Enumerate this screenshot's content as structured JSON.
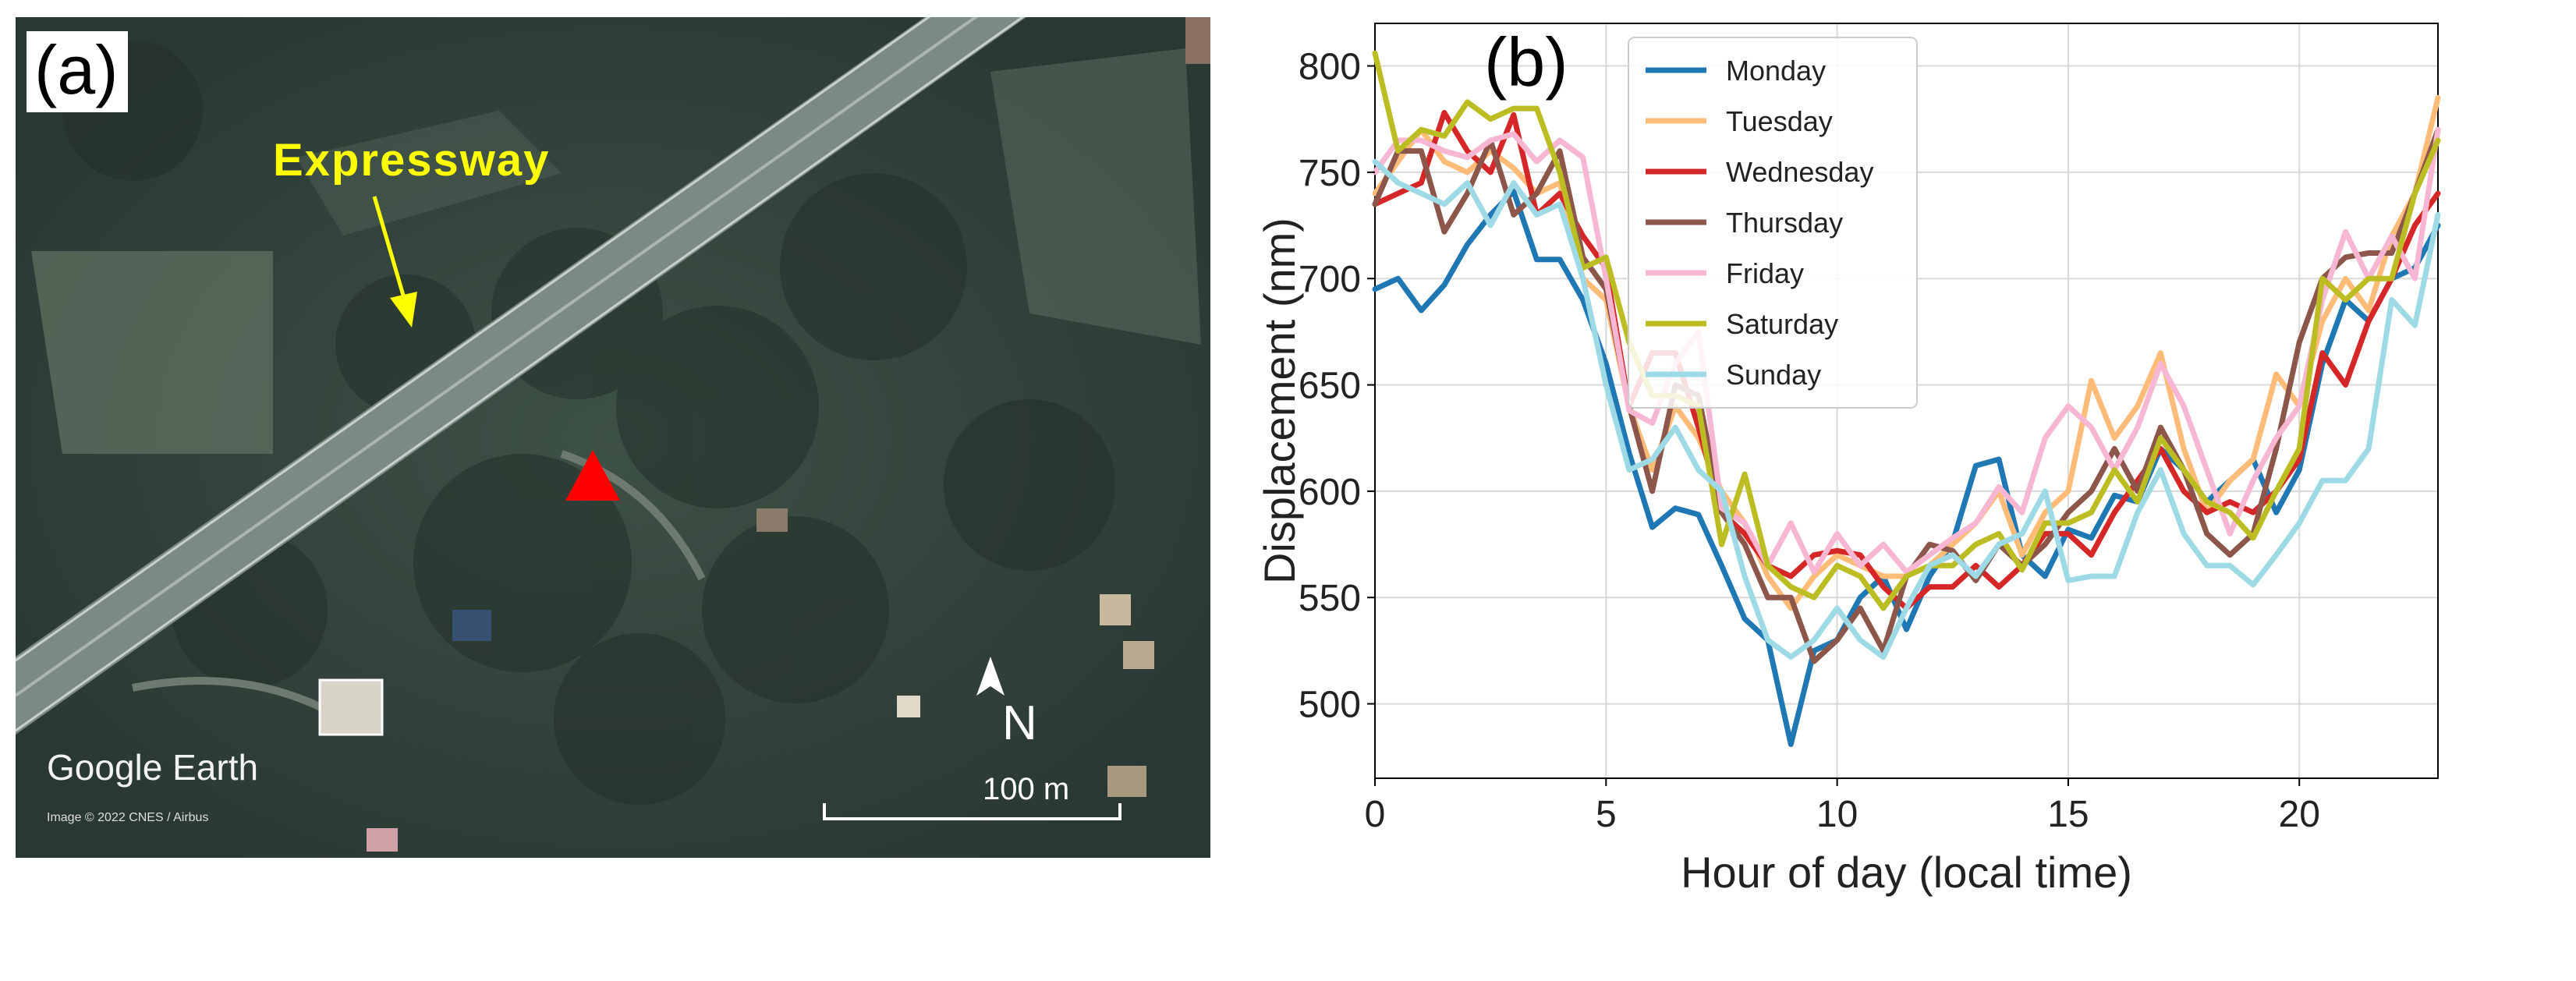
{
  "panel_a": {
    "panel_label": "(a)",
    "expressway_label": "Expressway",
    "north_label": "N",
    "scale_label": "100 m",
    "brand": "Google Earth",
    "imagery_credit": "Image © 2022 CNES / Airbus",
    "colors": {
      "annotation": "#ffff00",
      "station_marker": "#ff0000",
      "scale_bar": "#ffffff"
    }
  },
  "chart_data": {
    "type": "line",
    "panel_label": "(b)",
    "xlabel": "Hour of day (local time)",
    "ylabel": "Displacement (nm)",
    "xlim": [
      0,
      23
    ],
    "ylim": [
      465,
      820
    ],
    "xticks": [
      0,
      5,
      10,
      15,
      20
    ],
    "yticks": [
      500,
      550,
      600,
      650,
      700,
      750,
      800
    ],
    "grid": true,
    "legend_position": "top-center",
    "x": [
      0,
      0.5,
      1,
      1.5,
      2,
      2.5,
      3,
      3.5,
      4,
      4.5,
      5,
      5.5,
      6,
      6.5,
      7,
      7.5,
      8,
      8.5,
      9,
      9.5,
      10,
      10.5,
      11,
      11.5,
      12,
      12.5,
      13,
      13.5,
      14,
      14.5,
      15,
      15.5,
      16,
      16.5,
      17,
      17.5,
      18,
      18.5,
      19,
      19.5,
      20,
      20.5,
      21,
      21.5,
      22,
      22.5,
      23
    ],
    "series": [
      {
        "name": "Monday",
        "color": "#1f77b4",
        "values": [
          695,
          700,
          685,
          697,
          716,
          730,
          741,
          709,
          709,
          690,
          660,
          618,
          583,
          592,
          589,
          565,
          540,
          530,
          481,
          525,
          530,
          550,
          560,
          535,
          560,
          576,
          612,
          615,
          570,
          560,
          582,
          578,
          598,
          595,
          620,
          610,
          595,
          605,
          615,
          590,
          610,
          660,
          690,
          680,
          700,
          705,
          725
        ]
      },
      {
        "name": "Tuesday",
        "color": "#ffbb78",
        "values": [
          740,
          755,
          770,
          755,
          750,
          760,
          752,
          740,
          745,
          700,
          690,
          640,
          610,
          640,
          625,
          600,
          585,
          560,
          545,
          560,
          570,
          565,
          560,
          560,
          565,
          575,
          585,
          600,
          570,
          590,
          600,
          652,
          625,
          640,
          665,
          620,
          590,
          605,
          615,
          655,
          640,
          680,
          700,
          685,
          720,
          740,
          785
        ]
      },
      {
        "name": "Wednesday",
        "color": "#d62728",
        "values": [
          735,
          740,
          745,
          778,
          760,
          750,
          777,
          730,
          740,
          720,
          705,
          640,
          665,
          665,
          630,
          590,
          580,
          565,
          560,
          570,
          572,
          570,
          555,
          545,
          555,
          555,
          565,
          555,
          565,
          580,
          580,
          570,
          590,
          605,
          620,
          600,
          590,
          595,
          590,
          600,
          615,
          665,
          650,
          680,
          700,
          725,
          740
        ]
      },
      {
        "name": "Thursday",
        "color": "#8c564b",
        "values": [
          735,
          760,
          760,
          722,
          740,
          765,
          730,
          740,
          760,
          710,
          695,
          640,
          600,
          650,
          645,
          590,
          575,
          550,
          550,
          520,
          530,
          545,
          525,
          560,
          575,
          572,
          558,
          575,
          565,
          575,
          590,
          600,
          620,
          600,
          630,
          610,
          580,
          570,
          580,
          620,
          670,
          700,
          710,
          712,
          712,
          740,
          770
        ]
      },
      {
        "name": "Friday",
        "color": "#f7b6d2",
        "values": [
          750,
          765,
          765,
          760,
          757,
          765,
          768,
          755,
          765,
          757,
          700,
          638,
          632,
          660,
          675,
          592,
          585,
          565,
          585,
          562,
          580,
          565,
          575,
          562,
          570,
          578,
          585,
          602,
          590,
          625,
          640,
          630,
          610,
          630,
          660,
          640,
          610,
          580,
          605,
          625,
          640,
          690,
          722,
          700,
          720,
          700,
          770
        ]
      },
      {
        "name": "Saturday",
        "color": "#bcbd22",
        "values": [
          806,
          760,
          770,
          767,
          783,
          775,
          780,
          780,
          750,
          705,
          710,
          670,
          645,
          645,
          640,
          575,
          608,
          565,
          555,
          550,
          565,
          560,
          545,
          560,
          565,
          565,
          575,
          580,
          563,
          585,
          585,
          590,
          610,
          595,
          625,
          610,
          595,
          590,
          578,
          600,
          620,
          700,
          690,
          700,
          700,
          740,
          765
        ]
      },
      {
        "name": "Sunday",
        "color": "#9edae5",
        "values": [
          755,
          745,
          740,
          735,
          745,
          725,
          745,
          730,
          735,
          700,
          650,
          610,
          615,
          630,
          610,
          600,
          560,
          530,
          522,
          530,
          545,
          530,
          522,
          545,
          565,
          570,
          560,
          575,
          580,
          600,
          558,
          560,
          560,
          590,
          610,
          580,
          565,
          565,
          556,
          570,
          585,
          605,
          605,
          620,
          690,
          678,
          730
        ]
      }
    ]
  }
}
